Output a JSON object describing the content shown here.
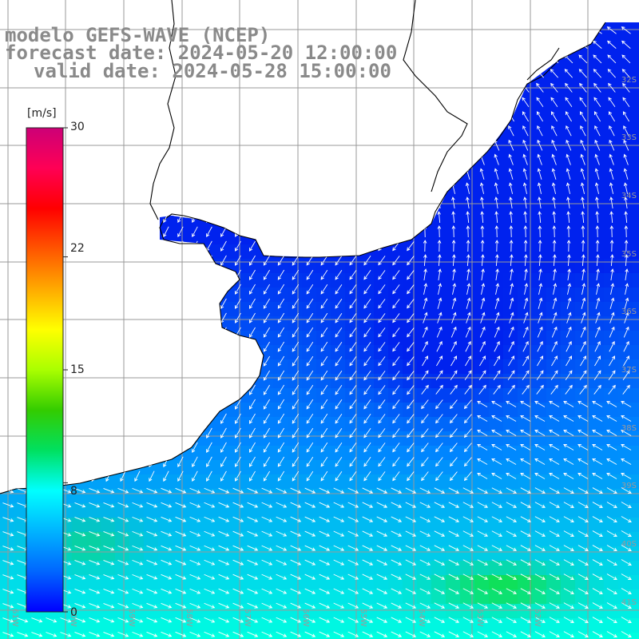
{
  "title": {
    "line1": "modelo GEFS-WAVE (NCEP)",
    "line2": "forecast date: 2024-05-20 12:00:00",
    "line3": "valid date: 2024-05-28 15:00:00"
  },
  "colorbar": {
    "unit": "[m/s]",
    "ticks": [
      {
        "label": "30",
        "value": 30
      },
      {
        "label": "22",
        "value": 22
      },
      {
        "label": "15",
        "value": 15
      },
      {
        "label": "8",
        "value": 8
      },
      {
        "label": "0",
        "value": 0
      }
    ],
    "colors": [
      "#0000ff",
      "#0066ff",
      "#00b4ff",
      "#00ffff",
      "#00e060",
      "#33cc00",
      "#aaff00",
      "#ffff00",
      "#ffaa00",
      "#ff5500",
      "#ff0000",
      "#ff0055",
      "#cc0077"
    ]
  },
  "map_labels": {
    "lat": [
      "32S",
      "33S",
      "34S",
      "35S",
      "36S",
      "37S",
      "38S",
      "39S",
      "40S",
      "41S"
    ],
    "lon": [
      "61W",
      "60W",
      "59W",
      "58W",
      "57W",
      "56W",
      "55W",
      "54W",
      "53W",
      "52W"
    ]
  },
  "colors": {
    "ocean_low": "#0022ee",
    "ocean_mid": "#0088ff",
    "ocean_high": "#00ffe0",
    "max_wind": "#10e050",
    "arrow": "#ffffff",
    "grid": "#999999",
    "coast": "#000000",
    "title": "#8a8a8a"
  }
}
